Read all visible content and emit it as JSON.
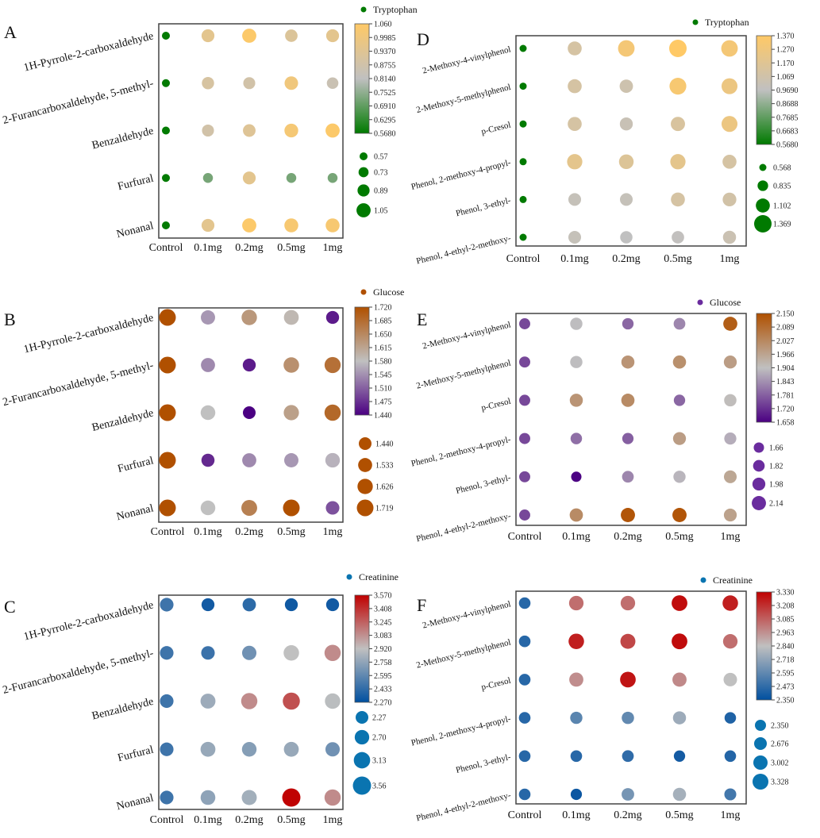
{
  "chart_data": [
    {
      "panel": "A",
      "type": "heatmap",
      "legend_title": "Tryptophan",
      "x_categories": [
        "Control",
        "0.1mg",
        "0.2mg",
        "0.5mg",
        "1mg"
      ],
      "y_categories": [
        "1H-Pyrrole-2-carboxaldehyde",
        "2-Furancarboxaldehyde, 5-methyl-",
        "Benzaldehyde",
        "Furfural",
        "Nonanal"
      ],
      "values": [
        [
          0.57,
          0.95,
          1.05,
          0.92,
          0.95
        ],
        [
          0.57,
          0.9,
          0.88,
          1.0,
          0.85
        ],
        [
          0.57,
          0.88,
          0.93,
          1.02,
          1.05
        ],
        [
          0.57,
          0.72,
          0.95,
          0.72,
          0.72
        ],
        [
          0.57,
          0.95,
          1.05,
          1.03,
          1.03
        ]
      ],
      "colorbar": {
        "range": [
          0.568,
          1.06
        ],
        "ticks": [
          "1.060",
          "0.9985",
          "0.9370",
          "0.8755",
          "0.8140",
          "0.7525",
          "0.6910",
          "0.6295",
          "0.5680"
        ],
        "colors": [
          "#007a00",
          "#c0c0c0",
          "#ffc966"
        ]
      },
      "size_legend": {
        "values": [
          "0.57",
          "0.73",
          "0.89",
          "1.05"
        ],
        "color": "#007a00"
      }
    },
    {
      "panel": "B",
      "type": "heatmap",
      "legend_title": "Glucose",
      "x_categories": [
        "Control",
        "0.1mg",
        "0.2mg",
        "0.5mg",
        "1mg"
      ],
      "y_categories": [
        "1H-Pyrrole-2-carboxaldehyde",
        "2-Furancarboxaldehyde, 5-methyl-",
        "Benzaldehyde",
        "Furfural",
        "Nonanal"
      ],
      "values": [
        [
          1.72,
          1.55,
          1.63,
          1.59,
          1.46
        ],
        [
          1.72,
          1.54,
          1.46,
          1.64,
          1.68
        ],
        [
          1.72,
          1.58,
          1.44,
          1.62,
          1.69
        ],
        [
          1.72,
          1.47,
          1.54,
          1.55,
          1.57
        ],
        [
          1.72,
          1.58,
          1.66,
          1.72,
          1.5
        ]
      ],
      "colorbar": {
        "range": [
          1.44,
          1.72
        ],
        "ticks": [
          "1.720",
          "1.685",
          "1.650",
          "1.615",
          "1.580",
          "1.545",
          "1.510",
          "1.475",
          "1.440"
        ],
        "colors": [
          "#4b0082",
          "#c0c0c0",
          "#b05000"
        ]
      },
      "size_legend": {
        "values": [
          "1.440",
          "1.533",
          "1.626",
          "1.719"
        ],
        "color": "#b05000"
      }
    },
    {
      "panel": "C",
      "type": "heatmap",
      "legend_title": "Creatinine",
      "x_categories": [
        "Control",
        "0.1mg",
        "0.2mg",
        "0.5mg",
        "1mg"
      ],
      "y_categories": [
        "1H-Pyrrole-2-carboxaldehyde",
        "2-Furancarboxaldehyde, 5-methyl-",
        "Benzaldehyde",
        "Furfural",
        "Nonanal"
      ],
      "values": [
        [
          2.48,
          2.33,
          2.42,
          2.32,
          2.33
        ],
        [
          2.48,
          2.47,
          2.65,
          2.92,
          3.1
        ],
        [
          2.48,
          2.8,
          3.1,
          3.3,
          2.9
        ],
        [
          2.48,
          2.78,
          2.72,
          2.78,
          2.65
        ],
        [
          2.48,
          2.75,
          2.82,
          3.56,
          3.1
        ]
      ],
      "colorbar": {
        "range": [
          2.27,
          3.57
        ],
        "ticks": [
          "3.570",
          "3.408",
          "3.245",
          "3.083",
          "2.920",
          "2.758",
          "2.595",
          "2.433",
          "2.270"
        ],
        "colors": [
          "#0050a0",
          "#c0c0c0",
          "#c00000"
        ]
      },
      "size_legend": {
        "values": [
          "2.27",
          "2.70",
          "3.13",
          "3.56"
        ],
        "color": "#0a74b0"
      }
    },
    {
      "panel": "D",
      "type": "heatmap",
      "legend_title": "Tryptophan",
      "x_categories": [
        "Control",
        "0.1mg",
        "0.2mg",
        "0.5mg",
        "1mg"
      ],
      "y_categories": [
        "2-Methoxy-4-vinylphenol",
        "2-Methoxy-5-methylphenol",
        "p-Cresol",
        "Phenol, 2-methoxy-4-propyl-",
        "Phenol, 3-ethyl-",
        "Phenol, 4-ethyl-2-methoxy-"
      ],
      "values": [
        [
          0.568,
          1.1,
          1.3,
          1.37,
          1.3
        ],
        [
          0.568,
          1.1,
          1.05,
          1.32,
          1.25
        ],
        [
          0.568,
          1.1,
          1.02,
          1.12,
          1.25
        ],
        [
          0.568,
          1.2,
          1.15,
          1.2,
          1.1
        ],
        [
          0.568,
          1.0,
          1.0,
          1.1,
          1.08
        ],
        [
          0.568,
          1.0,
          0.97,
          0.98,
          1.03
        ]
      ],
      "colorbar": {
        "range": [
          0.568,
          1.37
        ],
        "ticks": [
          "1.370",
          "1.270",
          "1.170",
          "1.069",
          "0.9690",
          "0.8688",
          "0.7685",
          "0.6683",
          "0.5680"
        ],
        "colors": [
          "#007a00",
          "#c0c0c0",
          "#ffc966"
        ]
      },
      "size_legend": {
        "values": [
          "0.568",
          "0.835",
          "1.102",
          "1.369"
        ],
        "color": "#007a00"
      }
    },
    {
      "panel": "E",
      "type": "heatmap",
      "legend_title": "Glucose",
      "x_categories": [
        "Control",
        "0.1mg",
        "0.2mg",
        "0.5mg",
        "1mg"
      ],
      "y_categories": [
        "2-Methoxy-4-vinylphenol",
        "2-Methoxy-5-methylphenol",
        "p-Cresol",
        "Phenol, 2-methoxy-4-propyl-",
        "Phenol, 3-ethyl-",
        "Phenol, 4-ethyl-2-methoxy-"
      ],
      "values": [
        [
          1.75,
          1.9,
          1.79,
          1.83,
          2.12
        ],
        [
          1.75,
          1.9,
          2.0,
          2.01,
          1.98
        ],
        [
          1.75,
          2.0,
          2.02,
          1.79,
          1.91
        ],
        [
          1.75,
          1.8,
          1.78,
          1.98,
          1.88
        ],
        [
          1.75,
          1.66,
          1.83,
          1.89,
          1.96
        ],
        [
          1.75,
          2.02,
          2.14,
          2.14,
          1.97
        ]
      ],
      "colorbar": {
        "range": [
          1.658,
          2.15
        ],
        "ticks": [
          "2.150",
          "2.089",
          "2.027",
          "1.966",
          "1.904",
          "1.843",
          "1.781",
          "1.720",
          "1.658"
        ],
        "colors": [
          "#4b0082",
          "#c0c0c0",
          "#b05000"
        ]
      },
      "size_legend": {
        "values": [
          "1.66",
          "1.82",
          "1.98",
          "2.14"
        ],
        "color": "#6a2c9e"
      }
    },
    {
      "panel": "F",
      "type": "heatmap",
      "legend_title": "Creatinine",
      "x_categories": [
        "Control",
        "0.1mg",
        "0.2mg",
        "0.5mg",
        "1mg"
      ],
      "y_categories": [
        "2-Methoxy-4-vinylphenol",
        "2-Methoxy-5-methylphenol",
        "p-Cresol",
        "Phenol, 2-methoxy-4-propyl-",
        "Phenol, 3-ethyl-",
        "Phenol, 4-ethyl-2-methoxy-"
      ],
      "values": [
        [
          2.45,
          3.05,
          3.05,
          3.3,
          3.25
        ],
        [
          2.45,
          3.25,
          3.15,
          3.3,
          3.05
        ],
        [
          2.45,
          2.97,
          3.28,
          2.98,
          2.84
        ],
        [
          2.45,
          2.58,
          2.6,
          2.75,
          2.43
        ],
        [
          2.45,
          2.45,
          2.47,
          2.4,
          2.44
        ],
        [
          2.45,
          2.38,
          2.65,
          2.77,
          2.52
        ]
      ],
      "colorbar": {
        "range": [
          2.35,
          3.33
        ],
        "ticks": [
          "3.330",
          "3.208",
          "3.085",
          "2.963",
          "2.840",
          "2.718",
          "2.595",
          "2.473",
          "2.350"
        ],
        "colors": [
          "#0050a0",
          "#c0c0c0",
          "#c00000"
        ]
      },
      "size_legend": {
        "values": [
          "2.350",
          "2.676",
          "3.002",
          "3.328"
        ],
        "color": "#0a74b0"
      }
    }
  ]
}
